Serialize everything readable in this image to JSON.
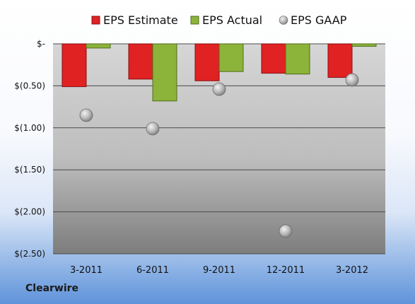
{
  "brand": "Clearwire",
  "chart_data": {
    "type": "bar",
    "categories": [
      "3-2011",
      "6-2011",
      "9-2011",
      "12-2011",
      "3-2012"
    ],
    "series": [
      {
        "name": "EPS Estimate",
        "kind": "bar",
        "color": "#e02222",
        "values": [
          -0.51,
          -0.42,
          -0.44,
          -0.35,
          -0.4
        ]
      },
      {
        "name": "EPS Actual",
        "kind": "bar",
        "color": "#8cb33a",
        "values": [
          -0.05,
          -0.68,
          -0.33,
          -0.36,
          -0.03
        ]
      },
      {
        "name": "EPS GAAP",
        "kind": "marker",
        "color": "#a8a8a8",
        "values": [
          -0.85,
          -1.01,
          -0.54,
          -2.23,
          -0.43
        ]
      }
    ],
    "ylim": [
      -2.5,
      0
    ],
    "yticks": [
      0,
      -0.5,
      -1.0,
      -1.5,
      -2.0,
      -2.5
    ],
    "ytick_labels": [
      "$-",
      "$(0.50)",
      "$(1.00)",
      "$(1.50)",
      "$(2.00)",
      "$(2.50)"
    ],
    "grid": true,
    "legend_position": "top"
  }
}
